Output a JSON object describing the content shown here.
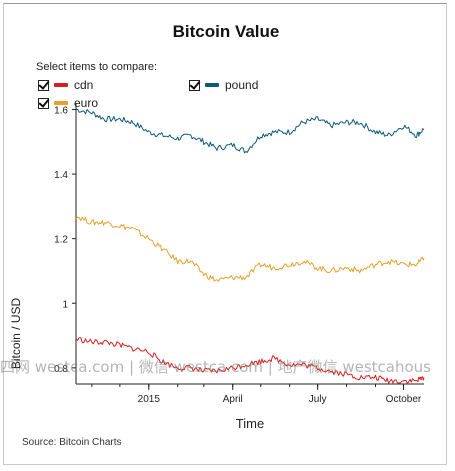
{
  "header": {
    "title": "Bitcoin Value"
  },
  "legend": {
    "prompt": "Select items to compare:",
    "items": [
      {
        "label": "cdn",
        "color": "#d62020",
        "checked": true
      },
      {
        "label": "pound",
        "color": "#0f5a78",
        "checked": true
      },
      {
        "label": "euro",
        "color": "#e8a030",
        "checked": true
      }
    ]
  },
  "footer": {
    "source": "Source: Bitcoin Charts"
  },
  "watermark": "四网 westca.com | 微信 westca.com | 地产微信 westcahous",
  "colors": {
    "cdn": "#d62020",
    "pound": "#0f5a78",
    "euro": "#e8a030"
  },
  "chart_data": {
    "type": "line",
    "title": "Bitcoin Value",
    "xlabel": "Time",
    "ylabel": "Bitcoin / USD",
    "ylim": [
      0.75,
      1.62
    ],
    "xlim": [
      "2014-10-15",
      "2015-10-23"
    ],
    "yticks": [
      {
        "value": 0.8,
        "label": "0.8"
      },
      {
        "value": 1.0,
        "label": "1"
      },
      {
        "value": 1.2,
        "label": "1.2"
      },
      {
        "value": 1.4,
        "label": "1.4"
      },
      {
        "value": 1.6,
        "label": "1.6"
      }
    ],
    "xticks": [
      {
        "date": "2015-01-01",
        "label": "2015"
      },
      {
        "date": "2015-04-01",
        "label": "April"
      },
      {
        "date": "2015-07-01",
        "label": "July"
      },
      {
        "date": "2015-10-01",
        "label": "October"
      }
    ],
    "grid": false,
    "legend_position": "top-left",
    "series": [
      {
        "name": "pound",
        "color": "#0f5a78",
        "x": [
          "2014-10-15",
          "2014-11-01",
          "2014-11-15",
          "2014-12-01",
          "2014-12-15",
          "2015-01-01",
          "2015-01-15",
          "2015-02-01",
          "2015-02-15",
          "2015-03-01",
          "2015-03-15",
          "2015-04-01",
          "2015-04-15",
          "2015-05-01",
          "2015-05-15",
          "2015-06-01",
          "2015-06-15",
          "2015-07-01",
          "2015-07-15",
          "2015-08-01",
          "2015-08-15",
          "2015-09-01",
          "2015-09-15",
          "2015-10-01",
          "2015-10-15",
          "2015-10-23"
        ],
        "y": [
          1.6,
          1.59,
          1.57,
          1.57,
          1.56,
          1.53,
          1.52,
          1.51,
          1.52,
          1.5,
          1.48,
          1.49,
          1.47,
          1.52,
          1.53,
          1.53,
          1.56,
          1.57,
          1.55,
          1.56,
          1.56,
          1.53,
          1.52,
          1.55,
          1.52,
          1.54
        ]
      },
      {
        "name": "euro",
        "color": "#e8a030",
        "x": [
          "2014-10-15",
          "2014-11-01",
          "2014-11-15",
          "2014-12-01",
          "2014-12-15",
          "2015-01-01",
          "2015-01-15",
          "2015-02-01",
          "2015-02-15",
          "2015-03-01",
          "2015-03-15",
          "2015-04-01",
          "2015-04-15",
          "2015-05-01",
          "2015-05-15",
          "2015-06-01",
          "2015-06-15",
          "2015-07-01",
          "2015-07-15",
          "2015-08-01",
          "2015-08-15",
          "2015-09-01",
          "2015-09-15",
          "2015-10-01",
          "2015-10-15",
          "2015-10-23"
        ],
        "y": [
          1.27,
          1.25,
          1.25,
          1.24,
          1.23,
          1.2,
          1.17,
          1.13,
          1.13,
          1.09,
          1.07,
          1.08,
          1.08,
          1.12,
          1.11,
          1.12,
          1.13,
          1.11,
          1.1,
          1.11,
          1.1,
          1.12,
          1.13,
          1.12,
          1.12,
          1.14
        ]
      },
      {
        "name": "cdn",
        "color": "#d62020",
        "x": [
          "2014-10-15",
          "2014-11-01",
          "2014-11-15",
          "2014-12-01",
          "2014-12-15",
          "2015-01-01",
          "2015-01-15",
          "2015-02-01",
          "2015-02-15",
          "2015-03-01",
          "2015-03-15",
          "2015-04-01",
          "2015-04-15",
          "2015-05-01",
          "2015-05-15",
          "2015-06-01",
          "2015-06-15",
          "2015-07-01",
          "2015-07-15",
          "2015-08-01",
          "2015-08-15",
          "2015-09-01",
          "2015-09-15",
          "2015-10-01",
          "2015-10-15",
          "2015-10-23"
        ],
        "y": [
          0.89,
          0.88,
          0.88,
          0.87,
          0.86,
          0.85,
          0.82,
          0.8,
          0.8,
          0.79,
          0.79,
          0.8,
          0.81,
          0.82,
          0.83,
          0.81,
          0.81,
          0.8,
          0.79,
          0.78,
          0.77,
          0.77,
          0.76,
          0.76,
          0.76,
          0.77
        ]
      }
    ]
  }
}
